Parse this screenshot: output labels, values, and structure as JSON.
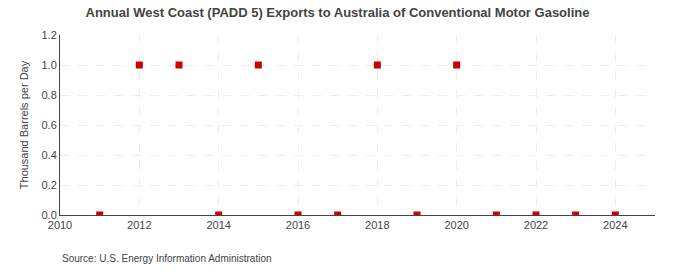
{
  "chart_data": {
    "type": "scatter",
    "title": "Annual West Coast (PADD 5) Exports to Australia of Conventional Motor Gasoline",
    "ylabel": "Thousand Barrels per Day",
    "annotation": "Source: U.S. Energy Information Administration",
    "x": [
      2011,
      2012,
      2013,
      2014,
      2015,
      2016,
      2017,
      2018,
      2019,
      2020,
      2021,
      2022,
      2023,
      2024
    ],
    "values": [
      0.0,
      1.0,
      1.0,
      0.0,
      1.0,
      0.0,
      0.0,
      1.0,
      0.0,
      1.0,
      0.0,
      0.0,
      0.0,
      0.0
    ],
    "color": "#cc0000",
    "marker": "square",
    "xlim": [
      2010,
      2025
    ],
    "xticks": [
      2010,
      2012,
      2014,
      2016,
      2018,
      2020,
      2022,
      2024
    ],
    "ylim": [
      0.0,
      1.2
    ],
    "yticks": [
      {
        "value": 0.0,
        "label": "0.0"
      },
      {
        "value": 0.2,
        "label": "0.2"
      },
      {
        "value": 0.4,
        "label": "0.4"
      },
      {
        "value": 0.6,
        "label": "0.6"
      },
      {
        "value": 0.8,
        "label": "0.8"
      },
      {
        "value": 1.0,
        "label": "1.0"
      },
      {
        "value": 1.2,
        "label": "1.2"
      }
    ],
    "grid": true
  }
}
